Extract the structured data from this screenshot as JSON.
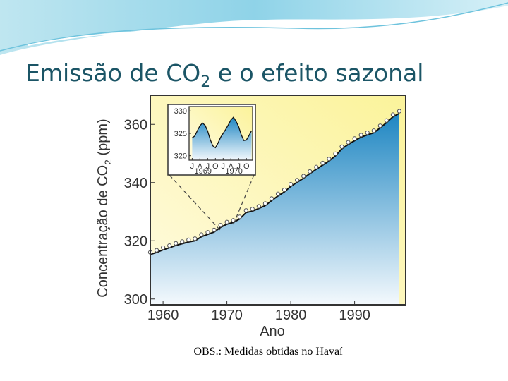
{
  "slide": {
    "title": [
      "Emissão de CO",
      "2",
      " e o efeito sazonal"
    ],
    "note": "OBS.: Medidas obtidas no Havaí"
  },
  "chart_data": [
    {
      "type": "line",
      "y_label": [
        "Concentração de CO",
        "2",
        " (ppm)"
      ],
      "x_label": "Ano",
      "x": [
        1958,
        1959,
        1960,
        1961,
        1962,
        1963,
        1964,
        1965,
        1966,
        1967,
        1968,
        1969,
        1970,
        1971,
        1972,
        1973,
        1974,
        1975,
        1976,
        1977,
        1978,
        1979,
        1980,
        1981,
        1982,
        1983,
        1984,
        1985,
        1986,
        1987,
        1988,
        1989,
        1990,
        1991,
        1992,
        1993,
        1994,
        1995,
        1996,
        1997
      ],
      "series": [
        {
          "color": "#111111",
          "values": [
            315.3,
            316,
            316.9,
            317.6,
            318.4,
            319,
            319.6,
            320,
            321.4,
            322.2,
            323,
            324.6,
            325.7,
            326.3,
            327.5,
            329.7,
            330.2,
            331.1,
            332.1,
            333.8,
            335.4,
            336.8,
            338.7,
            340.1,
            341.5,
            343.1,
            344.6,
            346,
            347.4,
            349.2,
            351.6,
            353.1,
            354.4,
            355.6,
            356.4,
            357.1,
            358.8,
            360.6,
            362.6,
            363.8
          ]
        }
      ],
      "markers": true,
      "xlim": [
        1958,
        1998
      ],
      "ylim": [
        298,
        370
      ],
      "xticks": [
        1960,
        1970,
        1980,
        1990
      ],
      "yticks": [
        300,
        320,
        340,
        360
      ]
    },
    {
      "type": "line",
      "x": [
        1969,
        1969.083,
        1969.167,
        1969.25,
        1969.333,
        1969.417,
        1969.5,
        1969.583,
        1969.667,
        1969.75,
        1969.833,
        1969.917,
        1970,
        1970.083,
        1970.167,
        1970.25,
        1970.333,
        1970.417,
        1970.5,
        1970.583,
        1970.667,
        1970.75,
        1970.833,
        1970.917
      ],
      "series": [
        {
          "color": "#111111",
          "values": [
            324,
            324.4,
            325.6,
            326.7,
            327.3,
            326.8,
            325.5,
            323.6,
            322.2,
            321.8,
            322.8,
            324.1,
            325,
            325.9,
            326.9,
            328,
            328.6,
            327.7,
            326.5,
            324.7,
            323.4,
            323.5,
            324.5,
            325.6
          ]
        }
      ],
      "xlim": [
        1968.9,
        1970.95
      ],
      "ylim": [
        319,
        331
      ],
      "xticks": [
        {
          "value": 1969,
          "label": "J"
        },
        {
          "value": 1969.25,
          "label": "A"
        },
        {
          "value": 1969.5,
          "label": "J"
        },
        {
          "value": 1969.75,
          "label": "O"
        },
        {
          "value": 1970,
          "label": "J"
        },
        {
          "value": 1970.25,
          "label": "A"
        },
        {
          "value": 1970.5,
          "label": "J"
        },
        {
          "value": 1970.75,
          "label": "O"
        }
      ],
      "yticks": [
        320,
        325,
        330
      ],
      "year_labels": [
        "1969",
        "1970"
      ]
    }
  ]
}
